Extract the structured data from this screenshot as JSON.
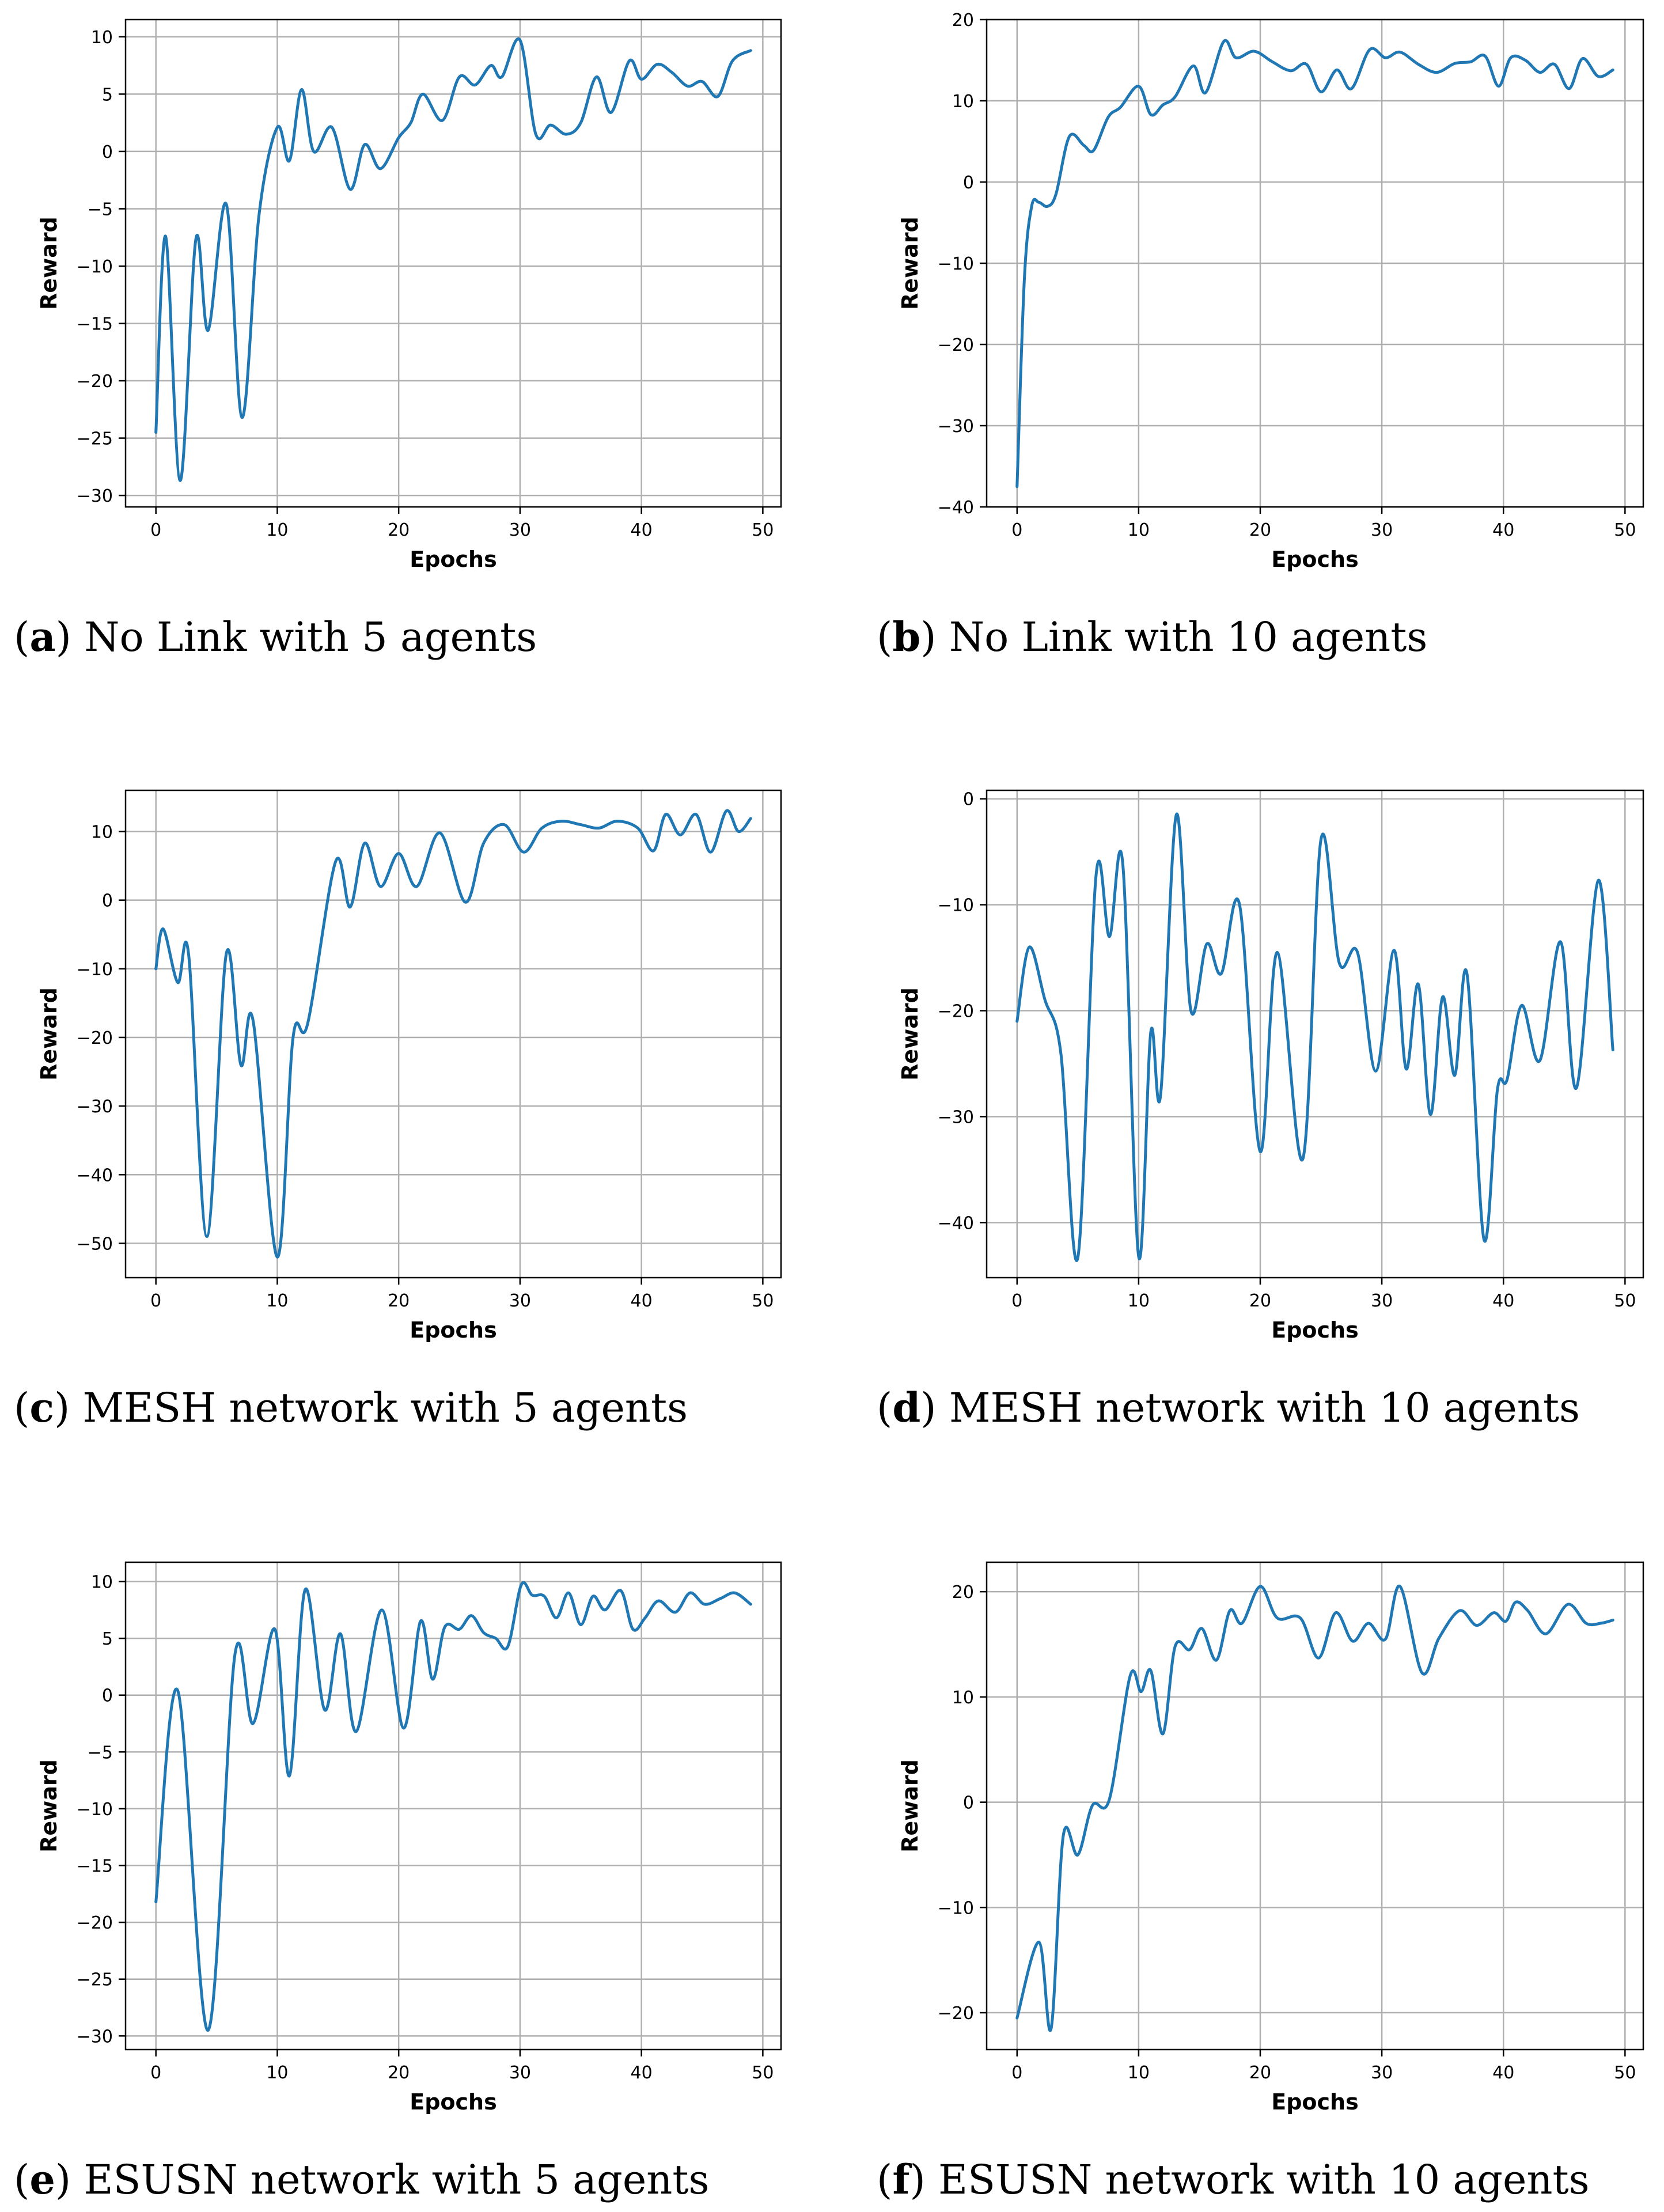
{
  "line_color": "#1f77b4",
  "grid_color": "#b0b0b0",
  "chart_data": [
    {
      "id": "a",
      "type": "line",
      "caption_letter": "a",
      "caption_text": "No Link with 5 agents",
      "xlabel": "Epochs",
      "ylabel": "Reward",
      "xlim": [
        -2.5,
        51.5
      ],
      "ylim": [
        -31,
        11.5
      ],
      "xticks": [
        0,
        10,
        20,
        30,
        40,
        50
      ],
      "yticks": [
        10,
        5,
        0,
        -5,
        -10,
        -15,
        -20,
        -25,
        -30
      ],
      "grid": true,
      "series": [
        {
          "name": "Reward",
          "x": [
            0,
            0.8,
            2,
            3.3,
            4.3,
            5.8,
            7.1,
            8.5,
            10,
            11,
            12,
            13,
            14.5,
            16,
            17.2,
            18.5,
            20,
            21,
            22,
            23.6,
            25,
            26.3,
            27.6,
            28.5,
            30,
            31.3,
            32.5,
            33.8,
            35,
            36.3,
            37.5,
            39,
            40,
            41.3,
            42.5,
            43.8,
            45,
            46.3,
            47.5,
            49
          ],
          "y": [
            -24.5,
            -7.4,
            -28.7,
            -7.6,
            -15.6,
            -4.6,
            -23.2,
            -5.5,
            2.1,
            -0.8,
            5.4,
            0,
            2.1,
            -3.3,
            0.6,
            -1.5,
            1.2,
            2.5,
            5,
            2.7,
            6.5,
            5.8,
            7.5,
            6.5,
            9.7,
            1.5,
            2.3,
            1.5,
            2.5,
            6.5,
            3.4,
            7.9,
            6.3,
            7.6,
            6.9,
            5.7,
            6.1,
            4.8,
            7.9,
            8.8
          ]
        }
      ]
    },
    {
      "id": "b",
      "type": "line",
      "caption_letter": "b",
      "caption_text": "No Link with 10 agents",
      "xlabel": "Epochs",
      "ylabel": "Reward",
      "xlim": [
        -2.5,
        51.5
      ],
      "ylim": [
        -40,
        20
      ],
      "xticks": [
        0,
        10,
        20,
        30,
        40,
        50
      ],
      "yticks": [
        20,
        10,
        0,
        -10,
        -20,
        -30,
        -40
      ],
      "grid": true,
      "series": [
        {
          "name": "Reward",
          "x": [
            0,
            0.6,
            1.2,
            1.8,
            2.5,
            3.2,
            4.3,
            5.5,
            6.3,
            7.5,
            8.5,
            10,
            11,
            12,
            13,
            14.5,
            15.5,
            17,
            18,
            19.5,
            21,
            22.5,
            23.8,
            25,
            26.3,
            27.5,
            29,
            30.3,
            31.5,
            33,
            34.5,
            36,
            37.3,
            38.5,
            39.6,
            40.6,
            41.8,
            43,
            44.2,
            45.4,
            46.5,
            47.8,
            49
          ],
          "y": [
            -37.5,
            -12,
            -3,
            -2.5,
            -3,
            -1.5,
            5.6,
            4.5,
            3.9,
            8,
            9.2,
            11.8,
            8.3,
            9.5,
            10.5,
            14.3,
            11,
            17.3,
            15.3,
            16.1,
            14.8,
            13.7,
            14.5,
            11.1,
            13.8,
            11.5,
            16.3,
            15.3,
            16,
            14.5,
            13.5,
            14.6,
            14.8,
            15.5,
            11.8,
            15.3,
            15,
            13.5,
            14.5,
            11.5,
            15.2,
            13,
            13.8
          ]
        }
      ]
    },
    {
      "id": "c",
      "type": "line",
      "caption_letter": "c",
      "caption_text": "MESH network with 5 agents",
      "xlabel": "Epochs",
      "ylabel": "Reward",
      "xlim": [
        -2.5,
        51.5
      ],
      "ylim": [
        -55,
        16
      ],
      "xticks": [
        0,
        10,
        20,
        30,
        40,
        50
      ],
      "yticks": [
        10,
        0,
        -10,
        -20,
        -30,
        -40,
        -50
      ],
      "grid": true,
      "series": [
        {
          "name": "Reward",
          "x": [
            0,
            0.6,
            1.8,
            2.7,
            4.2,
            5.8,
            7,
            8,
            10,
            11.3,
            12.5,
            14.8,
            16,
            17.2,
            18.5,
            20,
            21.5,
            23.4,
            25.5,
            27,
            28.7,
            30.3,
            31.8,
            33.4,
            35,
            36.5,
            38,
            39.7,
            41,
            42,
            43.2,
            44.5,
            45.7,
            47,
            48,
            49
          ],
          "y": [
            -10,
            -4.2,
            -12,
            -8,
            -49,
            -7.8,
            -24,
            -17.5,
            -52,
            -20,
            -18,
            5.6,
            -1,
            8.3,
            2,
            6.8,
            2,
            9.8,
            -0.3,
            8.3,
            11,
            7,
            10.5,
            11.5,
            11,
            10.5,
            11.5,
            10.5,
            7.2,
            12.5,
            9.5,
            12.5,
            7,
            13,
            10,
            11.9
          ]
        }
      ]
    },
    {
      "id": "d",
      "type": "line",
      "caption_letter": "d",
      "caption_text": "MESH network with 10 agents",
      "xlabel": "Epochs",
      "ylabel": "Reward",
      "xlim": [
        -2.5,
        51.5
      ],
      "ylim": [
        -45.2,
        0.8
      ],
      "xticks": [
        0,
        10,
        20,
        30,
        40,
        50
      ],
      "yticks": [
        0,
        -10,
        -20,
        -30,
        -40
      ],
      "grid": true,
      "series": [
        {
          "name": "Reward",
          "x": [
            0,
            1,
            2.3,
            3.6,
            5,
            6.5,
            7.6,
            8.7,
            10,
            11,
            11.8,
            13.1,
            14.3,
            15.6,
            16.8,
            18.3,
            20,
            21.4,
            23.5,
            25,
            26.5,
            28,
            29.5,
            31,
            32,
            33,
            34,
            35,
            36,
            37,
            38.4,
            39.5,
            40.3,
            41.5,
            43,
            44.7,
            46,
            47.8,
            49
          ],
          "y": [
            -21,
            -14,
            -19,
            -24,
            -43.3,
            -7.2,
            -13,
            -6.2,
            -43.2,
            -22,
            -28,
            -1.5,
            -20,
            -13.7,
            -16.5,
            -10,
            -33.3,
            -14.5,
            -34,
            -3.8,
            -15.5,
            -14.5,
            -25.7,
            -14.3,
            -25.5,
            -17.5,
            -29.8,
            -18.7,
            -26.1,
            -16.5,
            -41.6,
            -27.5,
            -26.5,
            -19.5,
            -24.7,
            -13.5,
            -27.3,
            -7.7,
            -23.7
          ]
        }
      ]
    },
    {
      "id": "e",
      "type": "line",
      "caption_letter": "e",
      "caption_text": "ESUSN network with 5 agents",
      "xlabel": "Epochs",
      "ylabel": "Reward",
      "xlim": [
        -2.5,
        51.5
      ],
      "ylim": [
        -31.2,
        11.7
      ],
      "xticks": [
        0,
        10,
        20,
        30,
        40,
        50
      ],
      "yticks": [
        10,
        5,
        0,
        -5,
        -10,
        -15,
        -20,
        -25,
        -30
      ],
      "grid": true,
      "series": [
        {
          "name": "Reward",
          "x": [
            0,
            1.8,
            4.3,
            6.5,
            8,
            9.8,
            11,
            12.3,
            13.9,
            15.2,
            16.5,
            18.6,
            20.4,
            21.8,
            22.8,
            23.8,
            25,
            26,
            27,
            28,
            29,
            30.1,
            31,
            32,
            33,
            34,
            35,
            36,
            37,
            38.3,
            39.3,
            40.3,
            41.4,
            42.8,
            44,
            45.2,
            46.5,
            47.7,
            49
          ],
          "y": [
            -18.2,
            0.4,
            -29.5,
            3.5,
            -2.5,
            5.8,
            -7.1,
            9.3,
            -1.3,
            5.4,
            -3.2,
            7.5,
            -2.9,
            6.5,
            1.4,
            6,
            5.8,
            7,
            5.5,
            5,
            4.3,
            9.7,
            8.8,
            8.7,
            6.8,
            9,
            6.2,
            8.7,
            7.5,
            9.2,
            5.8,
            6.8,
            8.3,
            7.3,
            9,
            8,
            8.5,
            9,
            8
          ]
        }
      ]
    },
    {
      "id": "f",
      "type": "line",
      "caption_letter": "f",
      "caption_text": "ESUSN network with 10 agents",
      "xlabel": "Epochs",
      "ylabel": "Reward",
      "xlim": [
        -2.5,
        51.5
      ],
      "ylim": [
        -23.5,
        22.8
      ],
      "xticks": [
        0,
        10,
        20,
        30,
        40,
        50
      ],
      "yticks": [
        20,
        10,
        0,
        -10,
        -20
      ],
      "grid": true,
      "series": [
        {
          "name": "Reward",
          "x": [
            0,
            1.8,
            2.8,
            3.8,
            5,
            6.2,
            7.6,
            9.3,
            10.2,
            11,
            12,
            13,
            14.2,
            15.2,
            16.4,
            17.5,
            18.5,
            20,
            21.4,
            23.3,
            24.8,
            26.2,
            27.6,
            28.9,
            30.3,
            31.5,
            33.3,
            34.7,
            36.4,
            37.8,
            39.2,
            40.2,
            41,
            42,
            43.5,
            45.3,
            46.8,
            48,
            49
          ],
          "y": [
            -20.5,
            -13.3,
            -21.5,
            -3.2,
            -5,
            -0.3,
            0.3,
            12,
            10.5,
            12.5,
            6.5,
            14.8,
            14.5,
            16.5,
            13.5,
            18.2,
            17,
            20.5,
            17.5,
            17.5,
            13.7,
            18,
            15.3,
            17,
            15.5,
            20.5,
            12.3,
            15.6,
            18.2,
            16.8,
            18,
            17.2,
            19,
            18.2,
            16,
            18.8,
            17,
            17,
            17.3
          ]
        }
      ]
    }
  ]
}
